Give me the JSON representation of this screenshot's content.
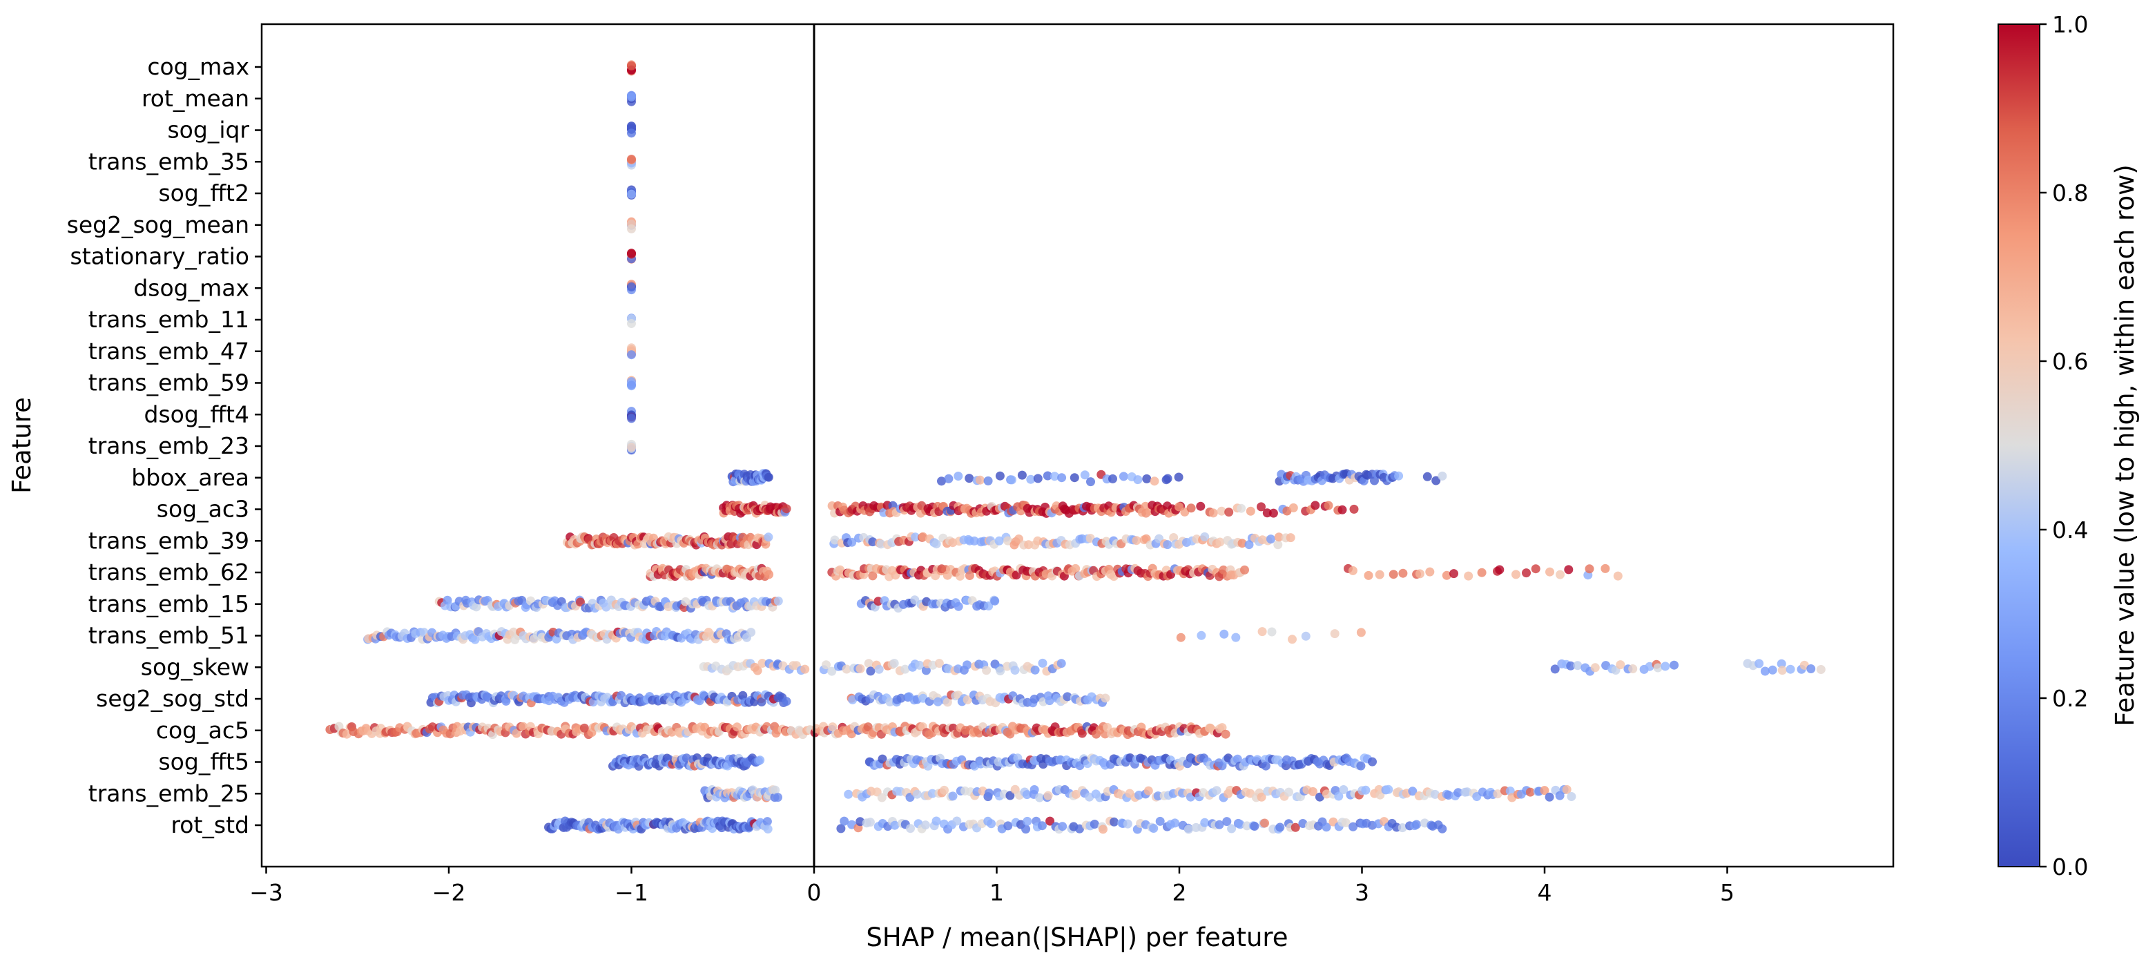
{
  "chart_data": {
    "type": "scatter",
    "xlabel": "SHAP / mean(|SHAP|) per feature",
    "ylabel": "Feature",
    "xlim": [
      -3.1,
      5.9
    ],
    "x_ticks": [
      -3,
      -2,
      -1,
      0,
      1,
      2,
      3,
      4,
      5
    ],
    "x_tick_labels": [
      "−3",
      "−2",
      "−1",
      "0",
      "1",
      "2",
      "3",
      "4",
      "5"
    ],
    "zero_line": 0,
    "grid": false,
    "features": [
      "cog_max",
      "rot_mean",
      "sog_iqr",
      "trans_emb_35",
      "sog_fft2",
      "seg2_sog_mean",
      "stationary_ratio",
      "dsog_max",
      "trans_emb_11",
      "trans_emb_47",
      "trans_emb_59",
      "dsog_fft4",
      "trans_emb_23",
      "bbox_area",
      "sog_ac3",
      "trans_emb_39",
      "trans_emb_62",
      "trans_emb_15",
      "trans_emb_51",
      "sog_skew",
      "seg2_sog_std",
      "cog_ac5",
      "sog_fft5",
      "trans_emb_25",
      "rot_std"
    ],
    "point_distributions": [
      {
        "feature": "cog_max",
        "clusters": [
          [
            -1.0,
            -1.0,
            6,
            0.9
          ]
        ]
      },
      {
        "feature": "rot_mean",
        "clusters": [
          [
            -1.0,
            -1.0,
            6,
            0.1
          ]
        ]
      },
      {
        "feature": "sog_iqr",
        "clusters": [
          [
            -1.0,
            -1.0,
            6,
            0.15
          ]
        ]
      },
      {
        "feature": "trans_emb_35",
        "clusters": [
          [
            -1.0,
            -1.0,
            6,
            0.6
          ]
        ]
      },
      {
        "feature": "sog_fft2",
        "clusters": [
          [
            -1.0,
            -1.0,
            6,
            0.2
          ]
        ]
      },
      {
        "feature": "seg2_sog_mean",
        "clusters": [
          [
            -1.0,
            -1.0,
            6,
            0.55
          ]
        ]
      },
      {
        "feature": "stationary_ratio",
        "clusters": [
          [
            -1.0,
            -1.0,
            6,
            0.85
          ]
        ]
      },
      {
        "feature": "dsog_max",
        "clusters": [
          [
            -1.0,
            -1.0,
            6,
            0.1
          ]
        ]
      },
      {
        "feature": "trans_emb_11",
        "clusters": [
          [
            -1.0,
            -1.0,
            6,
            0.3
          ]
        ]
      },
      {
        "feature": "trans_emb_47",
        "clusters": [
          [
            -1.0,
            -1.0,
            6,
            0.55
          ]
        ]
      },
      {
        "feature": "trans_emb_59",
        "clusters": [
          [
            -1.0,
            -1.0,
            6,
            0.5
          ]
        ]
      },
      {
        "feature": "dsog_fft4",
        "clusters": [
          [
            -1.0,
            -1.0,
            6,
            0.15
          ]
        ]
      },
      {
        "feature": "trans_emb_23",
        "clusters": [
          [
            -1.0,
            -1.0,
            6,
            0.4
          ]
        ]
      },
      {
        "feature": "bbox_area",
        "clusters": [
          [
            -0.45,
            -0.25,
            45,
            0.1
          ],
          [
            0.7,
            2.0,
            30,
            0.15
          ],
          [
            2.55,
            3.2,
            45,
            0.12
          ],
          [
            3.35,
            3.45,
            3,
            0.15
          ]
        ]
      },
      {
        "feature": "sog_ac3",
        "clusters": [
          [
            -0.5,
            -0.15,
            50,
            0.95
          ],
          [
            0.1,
            2.0,
            140,
            0.95
          ],
          [
            2.0,
            2.95,
            25,
            0.9
          ]
        ]
      },
      {
        "feature": "trans_emb_39",
        "clusters": [
          [
            -1.35,
            -0.25,
            120,
            0.8
          ],
          [
            0.1,
            2.6,
            110,
            0.5
          ]
        ]
      },
      {
        "feature": "trans_emb_62",
        "clusters": [
          [
            -0.9,
            -0.25,
            70,
            0.75
          ],
          [
            0.1,
            2.35,
            150,
            0.8
          ],
          [
            2.9,
            4.4,
            25,
            0.8
          ]
        ]
      },
      {
        "feature": "trans_emb_15",
        "clusters": [
          [
            -2.05,
            -0.2,
            120,
            0.35
          ],
          [
            0.25,
            1.0,
            35,
            0.25
          ]
        ]
      },
      {
        "feature": "trans_emb_51",
        "clusters": [
          [
            -2.45,
            -0.35,
            140,
            0.4
          ],
          [
            2.0,
            2.95,
            10,
            0.55
          ]
        ]
      },
      {
        "feature": "sog_skew",
        "clusters": [
          [
            -0.6,
            -0.05,
            25,
            0.45
          ],
          [
            0.05,
            1.35,
            50,
            0.42
          ],
          [
            4.05,
            4.7,
            20,
            0.38
          ],
          [
            5.1,
            5.5,
            12,
            0.38
          ]
        ]
      },
      {
        "feature": "seg2_sog_std",
        "clusters": [
          [
            -2.1,
            -0.15,
            150,
            0.2
          ],
          [
            0.2,
            1.6,
            70,
            0.35
          ]
        ]
      },
      {
        "feature": "cog_ac5",
        "clusters": [
          [
            -2.65,
            2.25,
            330,
            0.75
          ]
        ]
      },
      {
        "feature": "sog_fft5",
        "clusters": [
          [
            -1.1,
            -0.3,
            90,
            0.15
          ],
          [
            0.3,
            3.05,
            170,
            0.2
          ]
        ]
      },
      {
        "feature": "trans_emb_25",
        "clusters": [
          [
            -0.6,
            -0.2,
            45,
            0.4
          ],
          [
            0.2,
            4.15,
            160,
            0.45
          ]
        ]
      },
      {
        "feature": "rot_std",
        "clusters": [
          [
            -1.45,
            -0.25,
            130,
            0.2
          ],
          [
            0.15,
            3.45,
            120,
            0.3
          ]
        ]
      }
    ],
    "colorbar": {
      "label": "Feature value (low to high, within each row)",
      "colormap": "coolwarm",
      "range": [
        0.0,
        1.0
      ],
      "ticks": [
        0.0,
        0.2,
        0.4,
        0.6,
        0.8,
        1.0
      ],
      "tick_labels": [
        "0.0",
        "0.2",
        "0.4",
        "0.6",
        "0.8",
        "1.0"
      ],
      "low_color": "#3b4cc0",
      "mid_color": "#dddddd",
      "high_color": "#b40426"
    },
    "point_opacity": 0.8,
    "legend": "none"
  }
}
